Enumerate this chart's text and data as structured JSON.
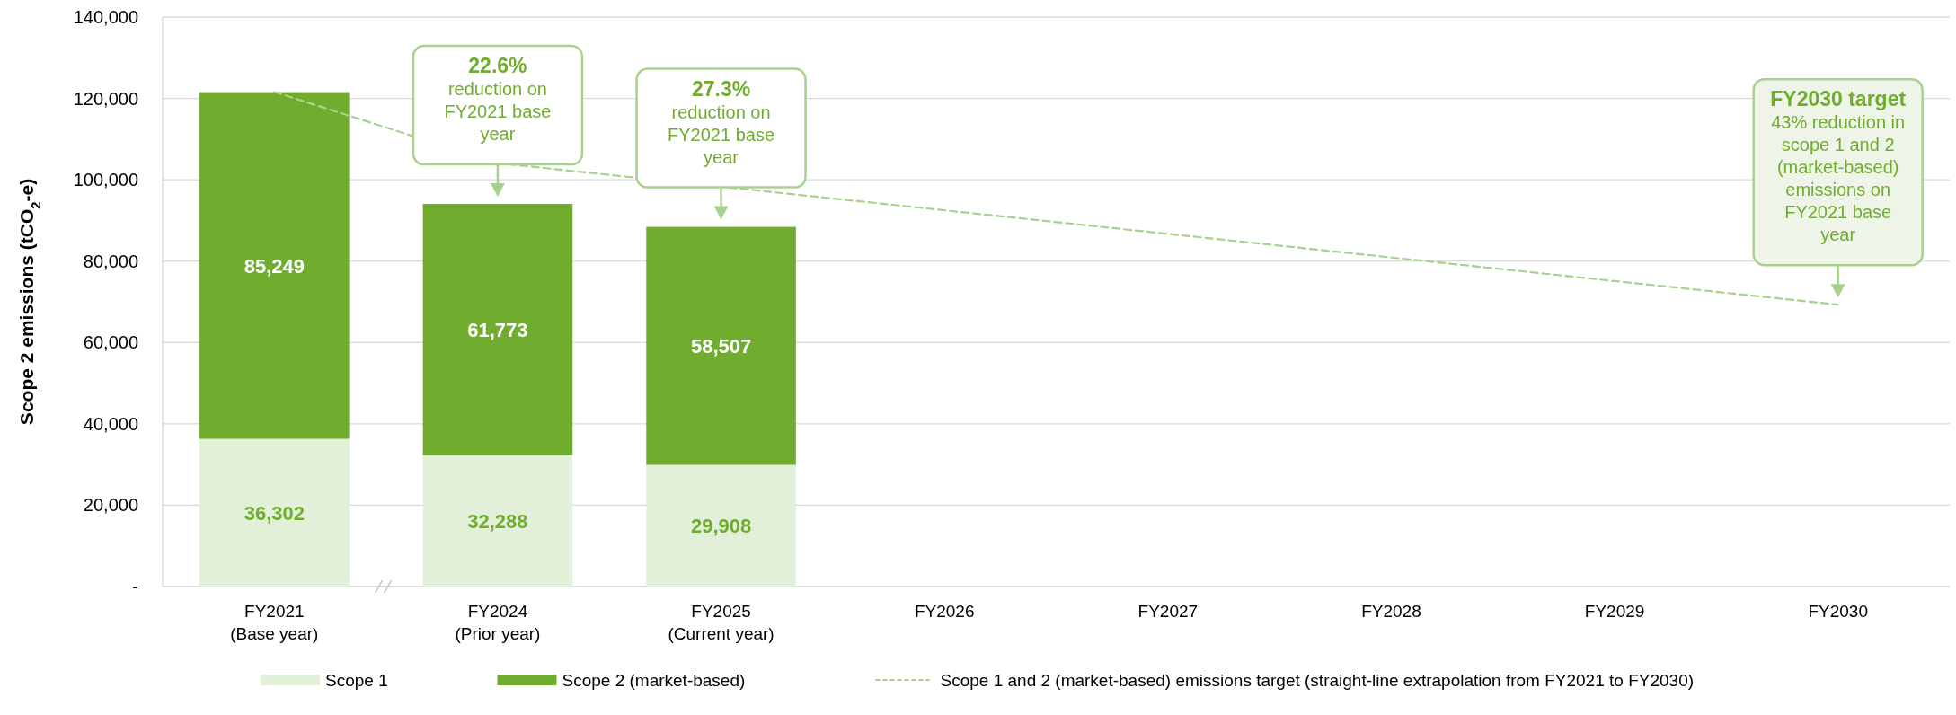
{
  "chart_data": {
    "type": "bar",
    "stacked": true,
    "ylabel": "Scope 2 emissions (tCO$_{2}$-e)",
    "categories": [
      "FY2021\n(Base year)",
      "FY2024\n(Prior year)",
      "FY2025\n(Current year)",
      "FY2026",
      "FY2027",
      "FY2028",
      "FY2029",
      "FY2030"
    ],
    "series": [
      {
        "name": "Scope 1",
        "color": "#e2efd9",
        "values": [
          36302,
          32288,
          29908,
          null,
          null,
          null,
          null,
          null
        ],
        "value_labels": [
          "36,302",
          "32,288",
          "29,908",
          null,
          null,
          null,
          null,
          null
        ]
      },
      {
        "name": "Scope 2 (market-based)",
        "color": "#70ad2e",
        "values": [
          85249,
          61773,
          58507,
          null,
          null,
          null,
          null,
          null
        ],
        "value_labels": [
          "85,249",
          "61,773",
          "58,507",
          null,
          null,
          null,
          null,
          null
        ]
      },
      {
        "name": "Scope 1 and 2 (market-based) emissions target (straight-line extrapolation from FY2021 to FY2030)",
        "type": "line",
        "color": "#a9d18e",
        "line_style": "dashed",
        "marker": "none",
        "values": [
          121600,
          104100,
          98300,
          92500,
          86700,
          80900,
          75100,
          69300
        ]
      }
    ],
    "ylim": [
      0,
      140000
    ],
    "yticks": [
      {
        "value": 0,
        "label": "-"
      },
      {
        "value": 20000,
        "label": "20,000"
      },
      {
        "value": 40000,
        "label": "40,000"
      },
      {
        "value": 60000,
        "label": "60,000"
      },
      {
        "value": 80000,
        "label": "80,000"
      },
      {
        "value": 100000,
        "label": "100,000"
      },
      {
        "value": 120000,
        "label": "120,000"
      },
      {
        "value": 140000,
        "label": "140,000"
      }
    ],
    "grid": "y",
    "legend": "bottom",
    "annotations": [
      {
        "text": "22.6%\nreduction on\nFY2021 base\nyear",
        "x": "FY2024\n(Prior year)",
        "y": 94061
      },
      {
        "text": "27.3%\nreduction on\nFY2021 base\nyear",
        "x": "FY2025\n(Current year)",
        "y": 88415
      },
      {
        "text": "FY2030 target\n43% reduction in\nscope 1 and 2\n(market-based)\nemissions on\nFY2021 base\nyear",
        "x": "FY2030",
        "y": 69300
      }
    ]
  }
}
